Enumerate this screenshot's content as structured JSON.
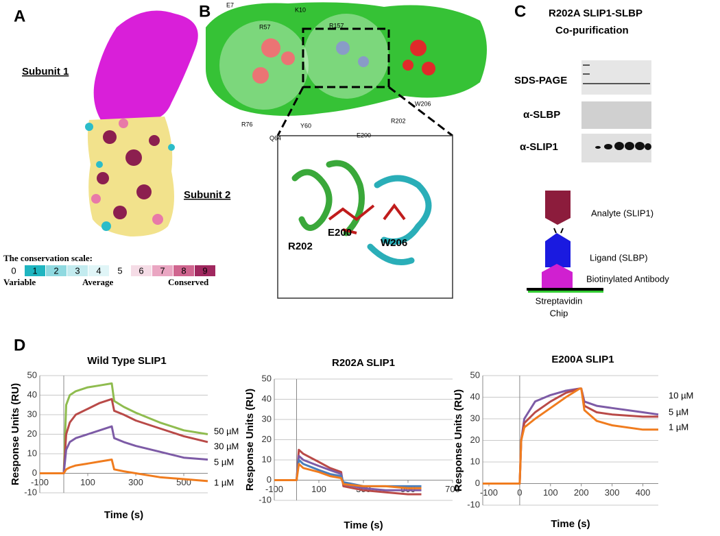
{
  "panels": {
    "a": {
      "label": "A",
      "subunit_1": "Subunit 1",
      "subunit_2": "Subunit 2",
      "scale_title": "The conservation scale:",
      "scale_grades": [
        0,
        1,
        2,
        3,
        4,
        5,
        6,
        7,
        8,
        9
      ],
      "scale_labels": [
        "Variable",
        "Average",
        "Conserved"
      ]
    },
    "b": {
      "label": "B",
      "residues": [
        "E7",
        "R57",
        "K10",
        "R157",
        "R76",
        "Q64",
        "Y60",
        "E200",
        "R202",
        "W206"
      ],
      "inset_residues": [
        "R202",
        "E200",
        "W206"
      ]
    },
    "c": {
      "label": "C",
      "title": [
        "R202A SLIP1-SLBP",
        "Co-purification"
      ],
      "blots": [
        "SDS-PAGE",
        "α-SLBP",
        "α-SLIP1"
      ],
      "assay": [
        "Analyte (SLIP1)",
        "Ligand (SLBP)",
        "Biotinylated  Antibody"
      ],
      "chip": [
        "Streptavidin",
        "Chip"
      ]
    },
    "d": {
      "label": "D"
    }
  },
  "chart_data": [
    {
      "type": "line",
      "title": "Wild Type SLIP1",
      "xlabel": "Time (s)",
      "ylabel": "Response Units (RU)",
      "x": [
        -100,
        -50,
        -10,
        0,
        10,
        25,
        50,
        100,
        150,
        200,
        210,
        250,
        300,
        400,
        500,
        600
      ],
      "series": [
        {
          "name": "50 µM",
          "color": "#8fbc4f",
          "values": [
            0,
            0,
            0,
            0,
            35,
            40,
            42,
            44,
            45,
            46,
            37,
            34,
            31,
            26,
            22,
            20
          ]
        },
        {
          "name": "30 µM",
          "color": "#b94a48",
          "values": [
            0,
            0,
            0,
            0,
            20,
            26,
            30,
            33,
            36,
            38,
            32,
            30,
            27,
            23,
            19,
            16
          ]
        },
        {
          "name": "5 µM",
          "color": "#7d5ba6",
          "values": [
            0,
            0,
            0,
            0,
            12,
            16,
            18,
            20,
            22,
            24,
            18,
            16,
            14,
            11,
            8,
            7
          ]
        },
        {
          "name": "1 µM",
          "color": "#f07c1e",
          "values": [
            0,
            0,
            0,
            0,
            2,
            3,
            4,
            5,
            6,
            7,
            2,
            1,
            0,
            -2,
            -3,
            -4
          ]
        }
      ],
      "xlim": [
        -100,
        600
      ],
      "ylim": [
        -10,
        50
      ],
      "xticks": [
        -100,
        100,
        300,
        500
      ],
      "yticks": [
        -10,
        0,
        10,
        20,
        30,
        40,
        50
      ],
      "grid": true
    },
    {
      "type": "line",
      "title": "R202A SLIP1",
      "xlabel": "Time (s)",
      "ylabel": "Response Units (RU)",
      "x": [
        -100,
        -50,
        -10,
        0,
        10,
        30,
        100,
        150,
        200,
        210,
        300,
        400,
        500,
        560
      ],
      "series": [
        {
          "color": "#b94a48",
          "values": [
            0,
            0,
            0,
            0,
            15,
            13,
            9,
            6,
            4,
            -3,
            -5,
            -6,
            -7,
            -7
          ]
        },
        {
          "color": "#7d5ba6",
          "values": [
            0,
            0,
            0,
            0,
            12,
            10,
            7,
            5,
            3,
            -2,
            -4,
            -5,
            -5,
            -5
          ]
        },
        {
          "color": "#4a7ebb",
          "values": [
            0,
            0,
            0,
            0,
            10,
            8,
            5,
            3,
            2,
            -1,
            -3,
            -3,
            -3,
            -3
          ]
        },
        {
          "color": "#f07c1e",
          "values": [
            0,
            0,
            0,
            0,
            8,
            6,
            4,
            2,
            1,
            -2,
            -3,
            -3,
            -4,
            -4
          ]
        }
      ],
      "xlim": [
        -100,
        700
      ],
      "ylim": [
        -10,
        50
      ],
      "xticks": [
        -100,
        100,
        300,
        500,
        700
      ],
      "yticks": [
        -10,
        0,
        10,
        20,
        30,
        40,
        50
      ],
      "grid": true
    },
    {
      "type": "line",
      "title": "E200A SLIP1",
      "xlabel": "Time (s)",
      "ylabel": "Response Units (RU)",
      "x": [
        -120,
        -50,
        -5,
        0,
        5,
        15,
        50,
        100,
        150,
        195,
        200,
        210,
        250,
        300,
        400,
        450
      ],
      "series": [
        {
          "name": "10 µM",
          "color": "#7d5ba6",
          "values": [
            0,
            0,
            0,
            0,
            20,
            30,
            38,
            41,
            43,
            44,
            44,
            38,
            36,
            35,
            33,
            32
          ]
        },
        {
          "name": "5 µM",
          "color": "#b94a48",
          "values": [
            0,
            0,
            0,
            0,
            20,
            28,
            33,
            38,
            42,
            44,
            44,
            36,
            33,
            32,
            31,
            31
          ]
        },
        {
          "name": "1 µM",
          "color": "#f07c1e",
          "values": [
            0,
            0,
            0,
            0,
            20,
            26,
            30,
            35,
            40,
            44,
            44,
            34,
            29,
            27,
            25,
            25
          ]
        }
      ],
      "xlim": [
        -120,
        450
      ],
      "ylim": [
        -10,
        50
      ],
      "xticks": [
        -100,
        0,
        100,
        200,
        300,
        400
      ],
      "yticks": [
        -10,
        0,
        10,
        20,
        30,
        40,
        50
      ],
      "grid": true
    }
  ]
}
